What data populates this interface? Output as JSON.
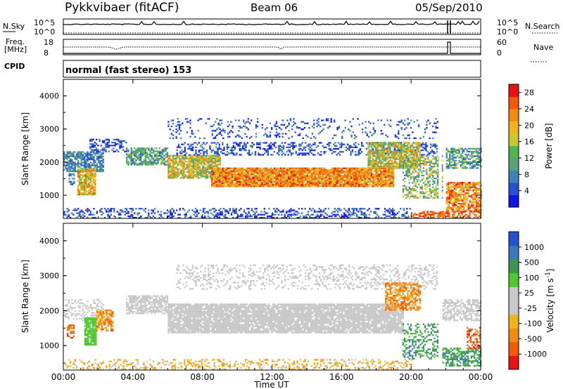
{
  "header": {
    "title": "Pykkvibaer (fitACF)",
    "beam": "Beam 06",
    "date": "05/Sep/2010"
  },
  "top_strip": {
    "left_label_1": "N.Sky",
    "left_ticks": [
      "10^5",
      "10^0"
    ],
    "right_ticks": [
      "10^5",
      "10^0"
    ],
    "right_label_1": "N.Search"
  },
  "freq_strip": {
    "left_label_1": "Freq.",
    "left_label_2": "[MHz]",
    "left_ticks": [
      "18",
      "8"
    ],
    "right_ticks": [
      "60",
      "0"
    ],
    "right_label_1": "Nave"
  },
  "cpid": {
    "label": "CPID",
    "text": "normal (fast stereo) 153"
  },
  "colors": {
    "power": [
      "#1414e6",
      "#2850d2",
      "#3c82b4",
      "#5aa078",
      "#50b450",
      "#c8c832",
      "#f0b41e",
      "#f08c14",
      "#f05a0a",
      "#e61414"
    ],
    "velocity": [
      "#e61414",
      "#f05a0a",
      "#f08c14",
      "#f0b41e",
      "#c8c8c8",
      "#c8c8c8",
      "#50c832",
      "#3c9650",
      "#3c78b4",
      "#2850d2"
    ]
  },
  "chart_data": [
    {
      "type": "heatmap",
      "name": "power",
      "ylabel": "Slant Range [km]",
      "yticks": [
        "1000",
        "2000",
        "3000",
        "4000"
      ],
      "ylim": [
        300,
        4500
      ],
      "xlim_hours": [
        0,
        24
      ],
      "colorbar": {
        "label": "Power [dB]",
        "ticks": [
          "4",
          "8",
          "12",
          "16",
          "20",
          "24",
          "28"
        ],
        "range": [
          0,
          30
        ]
      }
    },
    {
      "type": "heatmap",
      "name": "velocity",
      "ylabel": "Slant Range [km]",
      "yticks": [
        "1000",
        "2000",
        "3000",
        "4000"
      ],
      "ylim": [
        300,
        4500
      ],
      "xlim_hours": [
        0,
        24
      ],
      "xticks": [
        "00:00",
        "04:00",
        "08:00",
        "12:00",
        "16:00",
        "20:00",
        "00:00"
      ],
      "xlabel": "Time UT",
      "colorbar": {
        "label": "Velocity [m s^-1]",
        "ticks": [
          "1000",
          "500",
          "100",
          "25",
          "-25",
          "-100",
          "-500",
          "-1000"
        ]
      }
    }
  ]
}
